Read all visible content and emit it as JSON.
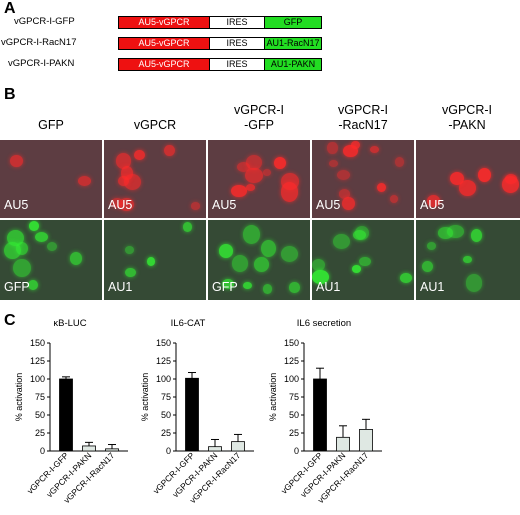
{
  "panels": {
    "a": "A",
    "b": "B",
    "c": "C"
  },
  "constructs": [
    {
      "label": "vGPCR-I-GFP",
      "segments": [
        "AU5-vGPCR",
        "IRES",
        "GFP"
      ]
    },
    {
      "label": "vGPCR-I-RacN17",
      "segments": [
        "AU5-vGPCR",
        "IRES",
        "AU1-RacN17"
      ]
    },
    {
      "label": "vGPCR-I-PAKN",
      "segments": [
        "AU5-vGPCR",
        "IRES",
        "AU1-PAKN"
      ]
    }
  ],
  "micrographs": {
    "columns": [
      {
        "line1": "GFP",
        "line2": "",
        "top_label": "AU5",
        "bottom_label": "GFP"
      },
      {
        "line1": "vGPCR",
        "line2": "",
        "top_label": "AU5",
        "bottom_label": "AU1"
      },
      {
        "line1": "vGPCR-I",
        "line2": "-GFP",
        "top_label": "AU5",
        "bottom_label": "GFP"
      },
      {
        "line1": "vGPCR-I",
        "line2": "-RacN17",
        "top_label": "AU5",
        "bottom_label": "AU1"
      },
      {
        "line1": "vGPCR-I",
        "line2": "-PAKN",
        "top_label": "AU5",
        "bottom_label": "AU1"
      }
    ],
    "colors": {
      "au5_stain": "#ff2a2a",
      "gfp_stain": "#33ee33"
    }
  },
  "chart_data": [
    {
      "type": "bar",
      "title": "κB-LUC",
      "ylabel": "% activation",
      "ylim": [
        0,
        150
      ],
      "yticks": [
        "0",
        "25",
        "50",
        "75",
        "100",
        "125",
        "150"
      ],
      "categories": [
        "vGPCR-I-GFP",
        "vGPCR-I-PAKN",
        "vGPCR-I-RacN17"
      ],
      "values": [
        100,
        7,
        3
      ],
      "errors": [
        3,
        5,
        6
      ],
      "colors": [
        "#000000",
        "#dfe8e3",
        "#dfe8e3"
      ]
    },
    {
      "type": "bar",
      "title": "IL6-CAT",
      "ylabel": "% activation",
      "ylim": [
        0,
        150
      ],
      "yticks": [
        "0",
        "25",
        "50",
        "75",
        "100",
        "125",
        "150"
      ],
      "categories": [
        "vGPCR-I-GFP",
        "vGPCR-I-PAKN",
        "vGPCR-I-RacN17"
      ],
      "values": [
        101,
        6,
        13
      ],
      "errors": [
        8,
        10,
        10
      ],
      "colors": [
        "#000000",
        "#dfe8e3",
        "#dfe8e3"
      ]
    },
    {
      "type": "bar",
      "title": "IL6 secretion",
      "ylabel": "% activation",
      "ylim": [
        0,
        150
      ],
      "yticks": [
        "0",
        "25",
        "50",
        "75",
        "100",
        "125",
        "150"
      ],
      "categories": [
        "vGPCR-I-GFP",
        "vGPCR-I-PAKN",
        "vGPCR-I-RacN17"
      ],
      "values": [
        100,
        19,
        30
      ],
      "errors": [
        15,
        16,
        14
      ],
      "colors": [
        "#000000",
        "#dfe8e3",
        "#dfe8e3"
      ]
    }
  ]
}
